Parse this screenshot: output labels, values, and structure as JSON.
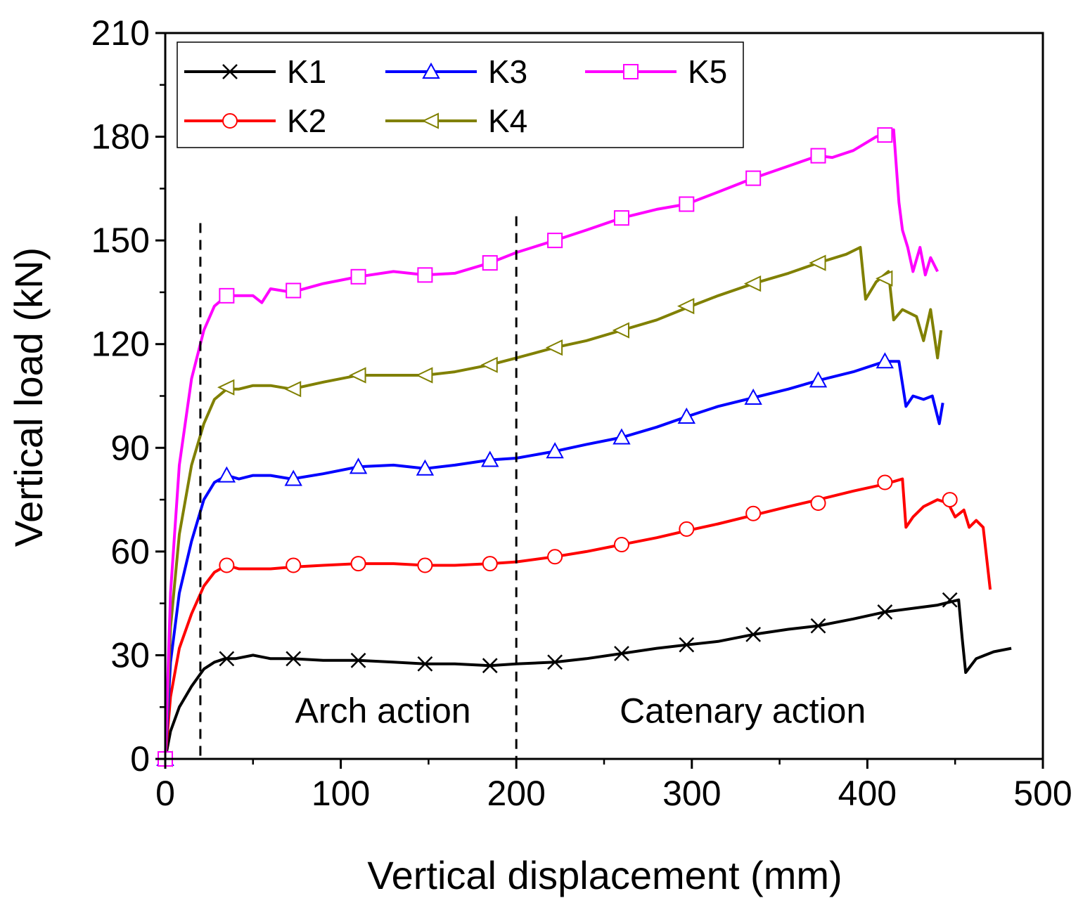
{
  "chart_data": {
    "type": "line",
    "title": "",
    "xlabel": "Vertical displacement (mm)",
    "ylabel": "Vertical load (kN)",
    "xlim": [
      0,
      500
    ],
    "ylim": [
      0,
      210
    ],
    "xticks": [
      0,
      100,
      200,
      300,
      400,
      500
    ],
    "yticks": [
      0,
      30,
      60,
      90,
      120,
      150,
      180,
      210
    ],
    "grid": false,
    "legend_position": "top-left",
    "annotations": [
      {
        "id": "arch",
        "text": "Arch action"
      },
      {
        "id": "catenary",
        "text": "Catenary action"
      }
    ],
    "divider_lines": [
      {
        "x": 20,
        "y_top": 155
      },
      {
        "x": 200,
        "y_top": 157
      }
    ],
    "series": [
      {
        "name": "K1",
        "color": "#000000",
        "marker": "x",
        "x": [
          0,
          3,
          8,
          15,
          22,
          28,
          34,
          40,
          50,
          60,
          72,
          90,
          110,
          130,
          148,
          165,
          185,
          200,
          222,
          240,
          260,
          280,
          297,
          315,
          335,
          355,
          372,
          392,
          410,
          425,
          440,
          452,
          454,
          456,
          462,
          472,
          482
        ],
        "y": [
          0,
          8,
          15,
          21,
          26,
          28,
          29,
          29,
          30,
          29,
          29,
          28.5,
          28.5,
          28,
          27.5,
          27.5,
          27,
          27.5,
          28,
          29,
          30.5,
          32,
          33,
          34,
          36,
          37.5,
          38.5,
          40.5,
          42.5,
          43.5,
          44.5,
          46,
          35,
          25,
          29,
          31,
          32
        ],
        "marker_x": [
          0,
          35,
          73,
          110,
          148,
          185,
          222,
          260,
          297,
          335,
          372,
          410,
          447
        ],
        "marker_y": [
          0,
          29,
          29,
          28.5,
          27.5,
          27,
          28,
          30.5,
          33,
          36,
          38.5,
          42.5,
          46
        ]
      },
      {
        "name": "K2",
        "color": "#ff0000",
        "marker": "circle",
        "x": [
          0,
          3,
          8,
          15,
          22,
          28,
          35,
          42,
          50,
          60,
          72,
          90,
          110,
          130,
          148,
          165,
          185,
          200,
          222,
          240,
          260,
          280,
          297,
          315,
          335,
          355,
          372,
          392,
          410,
          420,
          422,
          426,
          432,
          440,
          446,
          450,
          455,
          458,
          462,
          466,
          470
        ],
        "y": [
          0,
          18,
          32,
          42,
          50,
          54,
          56,
          55,
          55,
          55,
          55.5,
          56,
          56.5,
          56.5,
          56,
          56,
          56.5,
          57,
          58.5,
          60,
          62,
          64,
          66,
          68,
          70.5,
          73,
          75,
          77.5,
          79.5,
          81,
          67,
          70,
          73,
          75,
          74,
          70,
          72,
          67,
          69,
          67,
          49
        ],
        "marker_x": [
          0,
          35,
          73,
          110,
          148,
          185,
          222,
          260,
          297,
          335,
          372,
          410,
          447
        ],
        "marker_y": [
          0,
          56,
          56,
          56.5,
          56,
          56.5,
          58.5,
          62,
          66.5,
          71,
          74,
          80,
          75
        ]
      },
      {
        "name": "K3",
        "color": "#0000ff",
        "marker": "triangle-up",
        "x": [
          0,
          3,
          8,
          15,
          22,
          28,
          35,
          42,
          50,
          60,
          72,
          90,
          110,
          130,
          148,
          165,
          185,
          200,
          222,
          240,
          260,
          280,
          297,
          315,
          335,
          355,
          372,
          392,
          410,
          418,
          422,
          426,
          432,
          437,
          441,
          443
        ],
        "y": [
          0,
          28,
          48,
          63,
          75,
          80,
          82,
          81,
          82,
          82,
          81,
          82.5,
          84.5,
          85,
          84,
          85,
          86.5,
          87,
          89,
          91,
          93,
          96,
          99,
          102,
          104.5,
          107,
          109.5,
          112,
          115,
          115,
          102,
          105,
          104,
          105,
          97,
          103
        ],
        "marker_x": [
          0,
          35,
          73,
          110,
          148,
          185,
          222,
          260,
          297,
          335,
          372,
          410
        ],
        "marker_y": [
          0,
          82,
          81,
          84.5,
          84,
          86.5,
          89,
          93,
          99,
          104.5,
          109.5,
          115
        ]
      },
      {
        "name": "K4",
        "color": "#808000",
        "marker": "triangle-left",
        "x": [
          0,
          3,
          8,
          15,
          22,
          28,
          35,
          42,
          50,
          60,
          72,
          90,
          110,
          130,
          148,
          165,
          185,
          200,
          222,
          240,
          260,
          280,
          297,
          315,
          335,
          355,
          372,
          388,
          396,
          399,
          405,
          412,
          415,
          420,
          428,
          432,
          436,
          440,
          442
        ],
        "y": [
          0,
          38,
          65,
          85,
          97,
          104,
          107,
          107,
          108,
          108,
          107,
          109,
          111,
          111,
          111,
          112,
          114,
          116,
          119,
          121,
          124,
          127,
          130.5,
          134,
          137.5,
          140.5,
          143.5,
          146,
          148,
          133,
          138,
          141,
          127,
          130,
          128,
          121,
          130,
          116,
          124
        ],
        "marker_x": [
          0,
          35,
          73,
          110,
          148,
          185,
          222,
          260,
          297,
          335,
          372,
          410
        ],
        "marker_y": [
          0,
          107.5,
          107,
          111,
          111,
          114,
          119,
          124,
          131,
          137.5,
          143.5,
          139
        ]
      },
      {
        "name": "K5",
        "color": "#ff00ff",
        "marker": "square",
        "x": [
          0,
          3,
          8,
          15,
          22,
          28,
          35,
          42,
          50,
          55,
          60,
          72,
          90,
          110,
          130,
          148,
          165,
          185,
          200,
          222,
          240,
          260,
          280,
          297,
          315,
          335,
          355,
          372,
          380,
          392,
          405,
          410,
          415,
          418,
          420,
          423,
          426,
          430,
          433,
          436,
          440
        ],
        "y": [
          0,
          48,
          85,
          110,
          124,
          131,
          134,
          134,
          134,
          132,
          136,
          135,
          137.5,
          139.5,
          141,
          140,
          140.5,
          143.5,
          146.5,
          150,
          153,
          156.5,
          159,
          160.5,
          164,
          168,
          171.5,
          174.5,
          174,
          176,
          180,
          180.5,
          182,
          161,
          153,
          148,
          141,
          148,
          140,
          145,
          141
        ],
        "marker_x": [
          0,
          35,
          73,
          110,
          148,
          185,
          222,
          260,
          297,
          335,
          372,
          410
        ],
        "marker_y": [
          0,
          134,
          135.5,
          139.5,
          140,
          143.5,
          150,
          156.5,
          160.5,
          168,
          174.5,
          180.5
        ]
      }
    ]
  }
}
